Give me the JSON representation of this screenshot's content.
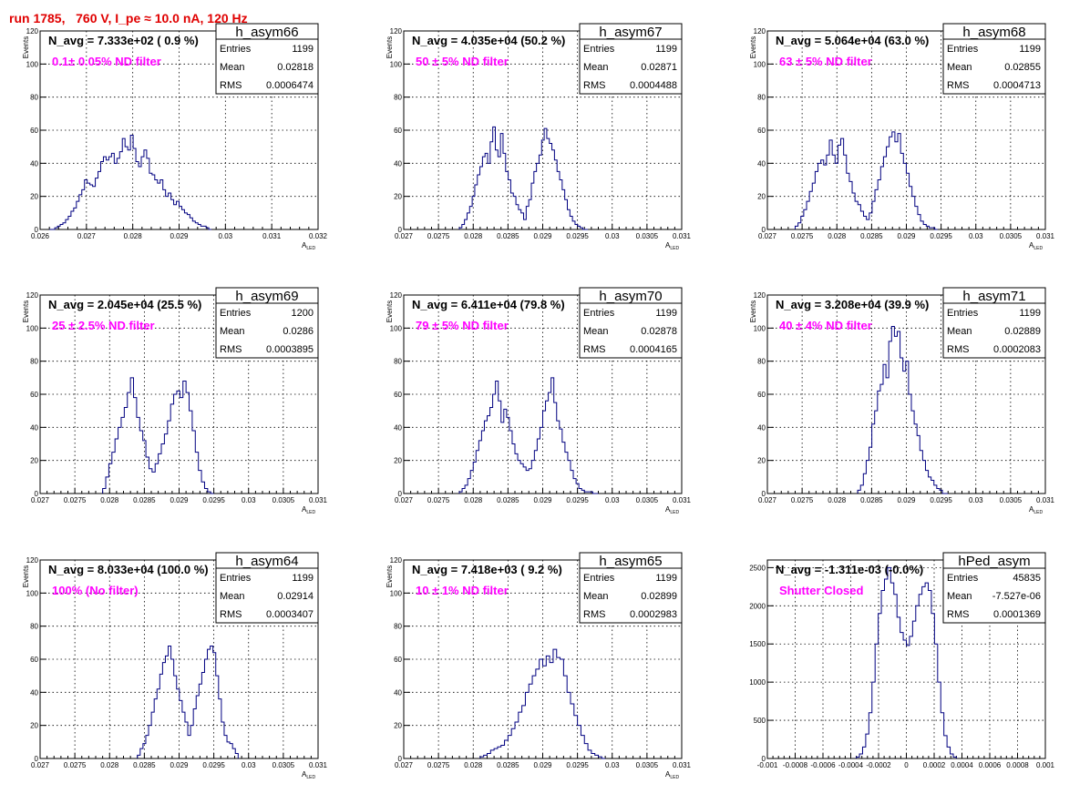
{
  "page_title": "run 1785,   760 V, I_pe ≈ 10.0 nA, 120 Hz",
  "colors": {
    "title": "#e00000",
    "histogram_line": "#000080",
    "annotation": "#ff00ff",
    "grid": "#000000"
  },
  "stat_labels": {
    "entries": "Entries",
    "mean": "Mean",
    "rms": "RMS"
  },
  "chart_data": [
    {
      "type": "bar",
      "hist_name": "h_asym66",
      "navg_label": "N_avg = 7.333e+02 ( 0.9 %)",
      "filter_label": "0.1± 0.05% ND filter",
      "stats": {
        "entries": "1199",
        "mean": "0.02818",
        "rms": "0.0006474"
      },
      "xlabel": "A_LED",
      "ylabel": "Events",
      "xlim": [
        0.026,
        0.032
      ],
      "ylim": [
        0,
        120
      ],
      "xticks": [
        "0.026",
        "0.027",
        "0.028",
        "0.029",
        "0.03",
        "0.031",
        "0.032"
      ],
      "yticks": [
        "0",
        "20",
        "40",
        "60",
        "80",
        "100",
        "120"
      ],
      "grid": true,
      "bin_edges": [
        0.0262,
        0.0297
      ],
      "values": [
        0,
        0,
        1,
        2,
        3,
        4,
        6,
        8,
        11,
        13,
        17,
        21,
        24,
        30,
        28,
        27,
        26,
        31,
        35,
        41,
        44,
        42,
        44,
        46,
        40,
        43,
        47,
        55,
        50,
        48,
        57,
        49,
        41,
        38,
        44,
        48,
        43,
        34,
        33,
        30,
        28,
        30,
        24,
        20,
        22,
        18,
        15,
        17,
        14,
        12,
        10,
        9,
        7,
        5,
        4,
        3,
        2,
        2,
        1,
        0
      ]
    },
    {
      "type": "bar",
      "hist_name": "h_asym67",
      "navg_label": "N_avg = 4.035e+04 (50.2 %)",
      "filter_label": "50 ± 5% ND filter",
      "stats": {
        "entries": "1199",
        "mean": "0.02871",
        "rms": "0.0004488"
      },
      "xlabel": "A_LED",
      "ylabel": "Events",
      "xlim": [
        0.027,
        0.031
      ],
      "ylim": [
        0,
        120
      ],
      "xticks": [
        "0.027",
        "0.0275",
        "0.028",
        "0.0285",
        "0.029",
        "0.0295",
        "0.03",
        "0.0305",
        "0.031"
      ],
      "yticks": [
        "0",
        "20",
        "40",
        "60",
        "80",
        "100",
        "120"
      ],
      "grid": true,
      "bin_edges": [
        0.0278,
        0.02965
      ],
      "values": [
        1,
        3,
        6,
        10,
        14,
        20,
        27,
        33,
        38,
        44,
        46,
        40,
        53,
        62,
        48,
        44,
        58,
        46,
        35,
        30,
        22,
        20,
        15,
        12,
        10,
        6,
        14,
        18,
        28,
        35,
        40,
        45,
        54,
        61,
        55,
        52,
        48,
        42,
        35,
        30,
        24,
        18,
        12,
        8,
        5,
        3,
        2,
        1,
        0,
        0
      ]
    },
    {
      "type": "bar",
      "hist_name": "h_asym68",
      "navg_label": "N_avg = 5.064e+04 (63.0 %)",
      "filter_label": "63 ± 5% ND filter",
      "stats": {
        "entries": "1199",
        "mean": "0.02855",
        "rms": "0.0004713"
      },
      "xlabel": "A_LED",
      "ylabel": "Events",
      "xlim": [
        0.027,
        0.031
      ],
      "ylim": [
        0,
        120
      ],
      "xticks": [
        "0.027",
        "0.0275",
        "0.028",
        "0.0285",
        "0.029",
        "0.0295",
        "0.03",
        "0.0305",
        "0.031"
      ],
      "yticks": [
        "0",
        "20",
        "40",
        "60",
        "80",
        "100",
        "120"
      ],
      "grid": true,
      "bin_edges": [
        0.0274,
        0.02945
      ],
      "values": [
        2,
        4,
        8,
        12,
        17,
        23,
        28,
        35,
        40,
        42,
        39,
        45,
        54,
        45,
        40,
        51,
        55,
        45,
        34,
        29,
        22,
        17,
        15,
        11,
        8,
        6,
        10,
        17,
        24,
        30,
        38,
        44,
        50,
        56,
        59,
        53,
        58,
        46,
        40,
        34,
        26,
        20,
        14,
        9,
        5,
        3,
        2,
        1,
        1,
        0
      ]
    },
    {
      "type": "bar",
      "hist_name": "h_asym69",
      "navg_label": "N_avg = 2.045e+04 (25.5 %)",
      "filter_label": "25 ± 2.5% ND filter",
      "stats": {
        "entries": "1200",
        "mean": "0.0286",
        "rms": "0.0003895"
      },
      "xlabel": "A_LED",
      "ylabel": "Events",
      "xlim": [
        0.027,
        0.031
      ],
      "ylim": [
        0,
        120
      ],
      "xticks": [
        "0.027",
        "0.0275",
        "0.028",
        "0.0285",
        "0.029",
        "0.0295",
        "0.03",
        "0.0305",
        "0.031"
      ],
      "yticks": [
        "0",
        "20",
        "40",
        "60",
        "80",
        "100",
        "120"
      ],
      "grid": true,
      "bin_edges": [
        0.0279,
        0.0295
      ],
      "values": [
        3,
        10,
        18,
        25,
        33,
        40,
        46,
        52,
        61,
        70,
        58,
        46,
        38,
        32,
        22,
        15,
        13,
        18,
        24,
        30,
        36,
        44,
        54,
        60,
        62,
        58,
        68,
        61,
        50,
        38,
        25,
        14,
        7,
        3,
        1,
        0
      ]
    },
    {
      "type": "bar",
      "hist_name": "h_asym70",
      "navg_label": "N_avg = 6.411e+04 (79.8 %)",
      "filter_label": "79 ± 5% ND filter",
      "stats": {
        "entries": "1199",
        "mean": "0.02878",
        "rms": "0.0004165"
      },
      "xlabel": "A_LED",
      "ylabel": "Events",
      "xlim": [
        0.027,
        0.031
      ],
      "ylim": [
        0,
        120
      ],
      "xticks": [
        "0.027",
        "0.0275",
        "0.028",
        "0.0285",
        "0.029",
        "0.0295",
        "0.03",
        "0.0305",
        "0.031"
      ],
      "yticks": [
        "0",
        "20",
        "40",
        "60",
        "80",
        "100",
        "120"
      ],
      "grid": true,
      "bin_edges": [
        0.0278,
        0.0298
      ],
      "values": [
        1,
        3,
        5,
        9,
        14,
        19,
        26,
        32,
        38,
        44,
        47,
        52,
        60,
        68,
        56,
        43,
        51,
        46,
        38,
        30,
        24,
        20,
        18,
        16,
        14,
        15,
        20,
        26,
        33,
        40,
        50,
        56,
        61,
        70,
        55,
        44,
        39,
        31,
        25,
        20,
        14,
        9,
        6,
        3,
        2,
        1,
        1,
        1,
        0,
        0
      ]
    },
    {
      "type": "bar",
      "hist_name": "h_asym71",
      "navg_label": "N_avg = 3.208e+04 (39.9 %)",
      "filter_label": "40 ± 4% ND filter",
      "stats": {
        "entries": "1199",
        "mean": "0.02889",
        "rms": "0.0002083"
      },
      "xlabel": "A_LED",
      "ylabel": "Events",
      "xlim": [
        0.027,
        0.031
      ],
      "ylim": [
        0,
        120
      ],
      "xticks": [
        "0.027",
        "0.0275",
        "0.028",
        "0.0285",
        "0.029",
        "0.0295",
        "0.03",
        "0.0305",
        "0.031"
      ],
      "yticks": [
        "0",
        "20",
        "40",
        "60",
        "80",
        "100",
        "120"
      ],
      "grid": true,
      "bin_edges": [
        0.0283,
        0.0296
      ],
      "values": [
        2,
        5,
        12,
        20,
        28,
        42,
        50,
        62,
        66,
        78,
        70,
        92,
        101,
        95,
        98,
        82,
        74,
        80,
        60,
        50,
        42,
        35,
        26,
        20,
        14,
        10,
        8,
        5,
        3,
        2,
        0,
        0
      ]
    },
    {
      "type": "bar",
      "hist_name": "h_asym64",
      "navg_label": "N_avg = 8.033e+04 (100.0 %)",
      "filter_label": "100% (No filter)",
      "stats": {
        "entries": "1199",
        "mean": "0.02914",
        "rms": "0.0003407"
      },
      "xlabel": "A_LED",
      "ylabel": "Events",
      "xlim": [
        0.027,
        0.031
      ],
      "ylim": [
        0,
        120
      ],
      "xticks": [
        "0.027",
        "0.0275",
        "0.028",
        "0.0285",
        "0.029",
        "0.0295",
        "0.03",
        "0.0305",
        "0.031"
      ],
      "yticks": [
        "0",
        "20",
        "40",
        "60",
        "80",
        "100",
        "120"
      ],
      "grid": true,
      "bin_edges": [
        0.0284,
        0.02985
      ],
      "values": [
        2,
        6,
        9,
        14,
        20,
        28,
        36,
        42,
        51,
        58,
        62,
        68,
        60,
        50,
        42,
        35,
        28,
        22,
        14,
        20,
        30,
        38,
        45,
        52,
        60,
        66,
        68,
        64,
        50,
        36,
        22,
        14,
        10,
        9,
        6,
        3
      ]
    },
    {
      "type": "bar",
      "hist_name": "h_asym65",
      "navg_label": "N_avg = 7.418e+03 ( 9.2 %)",
      "filter_label": "10 ± 1% ND filter",
      "stats": {
        "entries": "1199",
        "mean": "0.02899",
        "rms": "0.0002983"
      },
      "xlabel": "A_LED",
      "ylabel": "Events",
      "xlim": [
        0.027,
        0.031
      ],
      "ylim": [
        0,
        120
      ],
      "xticks": [
        "0.027",
        "0.0275",
        "0.028",
        "0.0285",
        "0.029",
        "0.0295",
        "0.03",
        "0.0305",
        "0.031"
      ],
      "yticks": [
        "0",
        "20",
        "40",
        "60",
        "80",
        "100",
        "120"
      ],
      "grid": true,
      "bin_edges": [
        0.0281,
        0.0299
      ],
      "values": [
        1,
        2,
        3,
        5,
        6,
        7,
        8,
        11,
        14,
        18,
        22,
        28,
        32,
        40,
        45,
        50,
        54,
        60,
        56,
        62,
        58,
        66,
        61,
        60,
        50,
        40,
        33,
        26,
        20,
        14,
        9,
        5,
        3,
        2,
        1,
        0
      ]
    },
    {
      "type": "bar",
      "hist_name": "hPed_asym",
      "navg_label": "N_avg = -1.311e-03 (-0.0%)",
      "filter_label": "Shutter Closed",
      "stats": {
        "entries": "45835",
        "mean": "-7.527e-06",
        "rms": "0.0001369"
      },
      "xlabel": "",
      "ylabel": "",
      "xlim": [
        -0.001,
        0.001
      ],
      "ylim": [
        0,
        2600
      ],
      "xticks": [
        "-0.001",
        "-0.0008",
        "-0.0006",
        "-0.0004",
        "-0.0002",
        "0",
        "0.0002",
        "0.0004",
        "0.0006",
        "0.0008",
        "0.001"
      ],
      "yticks": [
        "0",
        "500",
        "1000",
        "1500",
        "2000",
        "2500"
      ],
      "grid": true,
      "bin_edges": [
        -0.00036,
        0.00036
      ],
      "values": [
        20,
        60,
        150,
        320,
        600,
        1000,
        1500,
        1900,
        2200,
        2350,
        2500,
        2300,
        2150,
        1850,
        1650,
        1550,
        1480,
        1600,
        1800,
        2000,
        2150,
        2250,
        2300,
        2200,
        1900,
        1500,
        1000,
        600,
        300,
        150,
        60,
        20
      ]
    }
  ]
}
